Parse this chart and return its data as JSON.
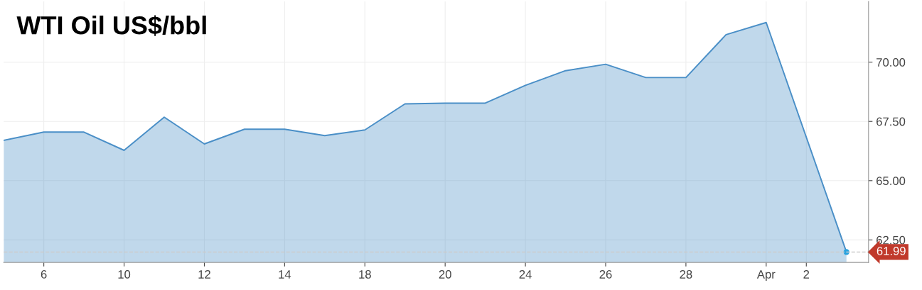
{
  "chart_data": {
    "type": "area",
    "title": "WTI Oil US$/bbl",
    "categories": [
      null,
      "6",
      null,
      "10",
      null,
      "12",
      null,
      "14",
      null,
      "18",
      null,
      "20",
      null,
      "24",
      null,
      "26",
      null,
      "28",
      null,
      "Apr",
      "2",
      null
    ],
    "series": [
      {
        "color": "#4a8fc7",
        "values": [
          66.7,
          67.05,
          67.05,
          66.28,
          67.68,
          66.55,
          67.17,
          67.17,
          66.9,
          67.14,
          68.24,
          68.27,
          68.27,
          69.02,
          69.64,
          69.91,
          69.35,
          69.35,
          71.16,
          71.67,
          null,
          61.99
        ]
      }
    ],
    "ylim": [
      61.55,
      72.56
    ],
    "yticks": [
      {
        "value": 62.5,
        "label": "62.50"
      },
      {
        "value": 65,
        "label": "65.00"
      },
      {
        "value": 67.5,
        "label": "67.50"
      },
      {
        "value": 70,
        "label": "70.00"
      }
    ],
    "ref_lines": [
      {
        "axis": "y",
        "value": 61.99,
        "label": "61.99",
        "line_style": "dashed"
      }
    ],
    "grid": true,
    "legend": false
  }
}
